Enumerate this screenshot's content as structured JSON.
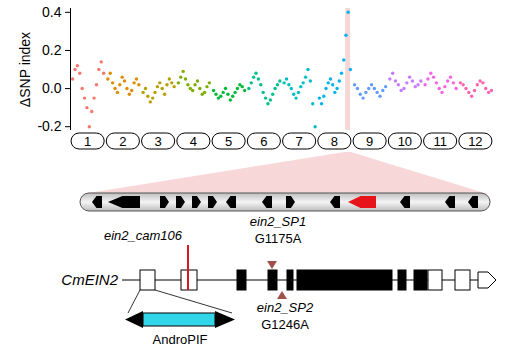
{
  "chart_data": {
    "type": "scatter",
    "y_label": "ΔSNP index",
    "ylim": [
      -0.22,
      0.42
    ],
    "yticks": [
      -0.2,
      {
        "value": 0,
        "label": "0.0"
      },
      0.2,
      0.4
    ],
    "marker": "circle",
    "series": [
      {
        "name": "1",
        "color": "#F8766D",
        "values": [
          0.05,
          0.1,
          0.12,
          0.08,
          0.0,
          -0.05,
          -0.1,
          -0.2,
          -0.12,
          -0.05,
          0.02,
          0.1,
          0.14,
          0.08
        ]
      },
      {
        "name": "2",
        "color": "#DE8C00",
        "values": [
          0.05,
          0.08,
          0.03,
          0.0,
          -0.02,
          0.02,
          0.06,
          0.04,
          0.0,
          -0.03,
          -0.01,
          0.03,
          0.05,
          0.02
        ]
      },
      {
        "name": "3",
        "color": "#B79F00",
        "values": [
          -0.02,
          0.0,
          -0.04,
          -0.07,
          -0.05,
          -0.02,
          0.01,
          0.03,
          0.0,
          -0.03,
          0.02,
          0.05,
          0.03,
          0.01
        ]
      },
      {
        "name": "4",
        "color": "#7CAE00",
        "values": [
          0.03,
          0.06,
          0.09,
          0.05,
          0.02,
          0.0,
          -0.01,
          0.02,
          0.04,
          0.0,
          -0.03,
          -0.02,
          0.01,
          0.03
        ]
      },
      {
        "name": "5",
        "color": "#00BA38",
        "values": [
          -0.01,
          -0.03,
          -0.05,
          -0.04,
          -0.02,
          0.0,
          -0.03,
          -0.06,
          -0.04,
          -0.02,
          0.0,
          0.02,
          0.01,
          -0.01
        ]
      },
      {
        "name": "6",
        "color": "#00C08B",
        "values": [
          0.0,
          0.03,
          0.06,
          0.08,
          0.05,
          0.02,
          -0.02,
          -0.05,
          -0.08,
          -0.06,
          -0.03,
          0.0,
          0.02,
          0.04
        ]
      },
      {
        "name": "7",
        "color": "#00BFC4",
        "values": [
          0.03,
          0.05,
          0.02,
          0.0,
          -0.03,
          -0.05,
          -0.02,
          0.01,
          0.03,
          0.06,
          0.1,
          0.04,
          -0.08,
          -0.2
        ]
      },
      {
        "name": "8",
        "color": "#00B4F0",
        "values": [
          -0.05,
          -0.08,
          -0.04,
          0.0,
          0.03,
          0.05,
          0.02,
          -0.02,
          0.0,
          0.04,
          0.08,
          0.15,
          0.28,
          0.4,
          0.1
        ]
      },
      {
        "name": "9",
        "color": "#619CFF",
        "values": [
          0.02,
          0.0,
          -0.03,
          -0.05,
          -0.02,
          0.0,
          0.02,
          0.0,
          -0.02,
          -0.04,
          -0.01,
          0.01
        ]
      },
      {
        "name": "10",
        "color": "#C77CFF",
        "values": [
          0.05,
          0.08,
          0.04,
          0.02,
          -0.01,
          0.0,
          0.03,
          0.06,
          0.04,
          0.01,
          0.02,
          0.04
        ]
      },
      {
        "name": "11",
        "color": "#F564E3",
        "values": [
          0.02,
          0.05,
          0.08,
          0.06,
          0.03,
          0.0,
          -0.02,
          0.01,
          0.04,
          0.06,
          0.03,
          0.0
        ]
      },
      {
        "name": "12",
        "color": "#FF64B0",
        "values": [
          0.03,
          0.02,
          0.0,
          -0.02,
          -0.04,
          -0.01,
          0.02,
          0.04,
          0.03,
          0.0,
          -0.02,
          -0.01
        ]
      }
    ]
  },
  "diagram": {
    "zoom_chromosome": "8",
    "gene": "CmEIN2",
    "insertion": {
      "name": "ein2_cam106",
      "element": "AndroPIF"
    },
    "snps": [
      {
        "name": "ein2_SP1",
        "change": "G1175A"
      },
      {
        "name": "ein2_SP2",
        "change": "G1246A"
      }
    ]
  }
}
